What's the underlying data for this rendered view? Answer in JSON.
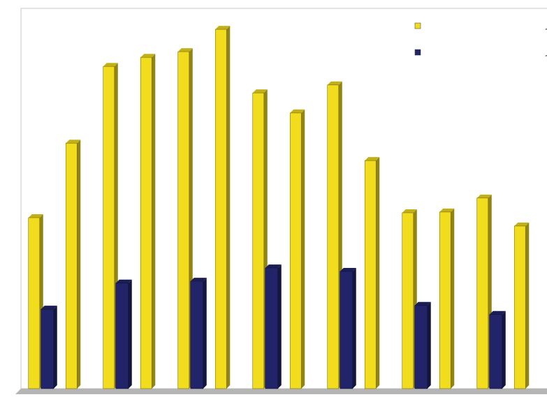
{
  "chart_data": {
    "type": "bar",
    "categories": [
      null,
      null,
      null,
      null,
      null,
      null,
      null,
      null,
      null,
      null,
      null,
      null,
      null,
      null
    ],
    "series": [
      {
        "name": "دستگاه زهرگیری داخل کشور",
        "color": "#f2dc1e",
        "values": [
          45.2,
          64.9,
          85.2,
          87.6,
          89.1,
          95.0,
          78.2,
          72.9,
          80.3,
          60.3,
          46.5,
          46.7,
          50.4,
          43.0
        ]
      },
      {
        "name": "دستگاه زهرگیری خارج از کشور",
        "color": "#22246a",
        "values": [
          21.0,
          null,
          27.9,
          null,
          28.4,
          null,
          31.9,
          null,
          31.0,
          null,
          22.0,
          null,
          19.6,
          null
        ]
      }
    ],
    "ylim": [
      0,
      100
    ],
    "legend": "top-right"
  }
}
